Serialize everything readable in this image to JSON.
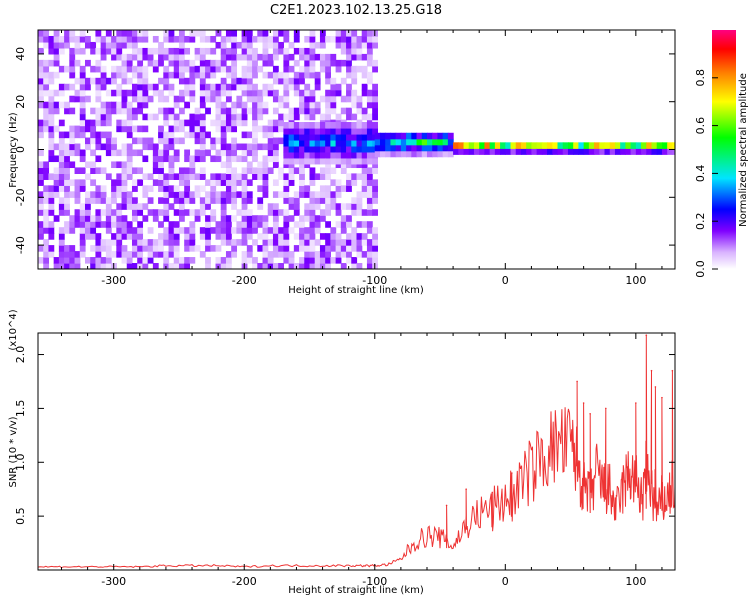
{
  "figure": {
    "title": "C2E1.2023.102.13.25.G18"
  },
  "chart_data": [
    {
      "type": "heatmap",
      "title": "C2E1.2023.102.13.25.G18",
      "xlabel": "Height of straight line (km)",
      "ylabel": "Frequency (Hz)",
      "xlim": [
        -358,
        130
      ],
      "ylim": [
        -50,
        50
      ],
      "x_ticks": [
        -300,
        -200,
        -100,
        0,
        100
      ],
      "x_tick_labels": [
        "-300",
        "-200",
        "-100",
        "0",
        "100"
      ],
      "y_ticks": [
        -40,
        -20,
        0,
        20,
        40
      ],
      "y_tick_labels": [
        "-40",
        "-20",
        "0",
        "20",
        "40"
      ],
      "colorbar": {
        "label": "Normalized spectral amplitude",
        "range": [
          0.0,
          1.0
        ],
        "ticks": [
          0.0,
          0.2,
          0.4,
          0.6,
          0.8
        ],
        "tick_labels": [
          "0.0",
          "0.2",
          "0.4",
          "0.6",
          "0.8"
        ],
        "colormap": [
          "#ffffff",
          "#d9b3ff",
          "#7f00ff",
          "#0000ff",
          "#00e5ff",
          "#00ff00",
          "#ffff00",
          "#ff8000",
          "#ff0000",
          "#ff0080"
        ]
      },
      "features": [
        {
          "description": "broadband noise",
          "x_range": [
            -358,
            -100
          ],
          "f_range": [
            -50,
            50
          ],
          "amplitude": 0.2
        },
        {
          "description": "signal band",
          "x_range": [
            -170,
            -100
          ],
          "f_center": 2,
          "f_halfwidth": 8,
          "amplitude": 0.45
        },
        {
          "description": "signal band",
          "x_range": [
            -100,
            -40
          ],
          "f_center": 2,
          "f_halfwidth": 5,
          "amplitude": 0.55
        },
        {
          "description": "signal band",
          "x_range": [
            -40,
            130
          ],
          "f_center": 0,
          "f_halfwidth": 2,
          "amplitude": 0.9
        }
      ],
      "grid": false
    },
    {
      "type": "line",
      "xlabel": "Height of straight line (km)",
      "ylabel": "SNR (10 * v/v)",
      "y_multiplier_label": "(x10^4)",
      "xlim": [
        -358,
        130
      ],
      "ylim": [
        0,
        2.2
      ],
      "x_ticks": [
        -300,
        -200,
        -100,
        0,
        100
      ],
      "x_tick_labels": [
        "-300",
        "-200",
        "-100",
        "0",
        "100"
      ],
      "y_ticks": [
        0.5,
        1.0,
        1.5,
        2.0
      ],
      "y_tick_labels": [
        "0.5",
        "1.0",
        "1.5",
        "2.0"
      ],
      "color": "#ee3333",
      "series": [
        {
          "x": [
            -358,
            -340,
            -320,
            -300,
            -280,
            -260,
            -240,
            -220,
            -200,
            -180,
            -160,
            -140,
            -120,
            -110,
            -100,
            -90,
            -80,
            -70,
            -60,
            -50,
            -40,
            -30,
            -20,
            -10,
            0,
            10,
            20,
            30,
            40,
            50,
            55,
            60,
            65,
            70,
            75,
            80,
            85,
            90,
            95,
            100,
            105,
            110,
            115,
            120,
            125,
            130
          ],
          "y": [
            0.03,
            0.03,
            0.03,
            0.03,
            0.03,
            0.04,
            0.04,
            0.04,
            0.03,
            0.04,
            0.04,
            0.04,
            0.04,
            0.04,
            0.04,
            0.05,
            0.1,
            0.25,
            0.32,
            0.3,
            0.22,
            0.42,
            0.52,
            0.58,
            0.65,
            0.78,
            0.92,
            1.08,
            1.16,
            1.15,
            1.0,
            0.75,
            0.68,
            0.9,
            0.76,
            0.74,
            0.55,
            0.75,
            0.9,
            0.82,
            0.65,
            0.85,
            0.55,
            0.6,
            0.7,
            0.78
          ]
        }
      ],
      "spikes": [
        {
          "x": -45,
          "y": 0.6
        },
        {
          "x": -30,
          "y": 0.75
        },
        {
          "x": -10,
          "y": 0.72
        },
        {
          "x": 5,
          "y": 0.9
        },
        {
          "x": 55,
          "y": 1.75
        },
        {
          "x": 60,
          "y": 1.55
        },
        {
          "x": 65,
          "y": 1.45
        },
        {
          "x": 77,
          "y": 1.5
        },
        {
          "x": 100,
          "y": 1.55
        },
        {
          "x": 108,
          "y": 2.18
        },
        {
          "x": 112,
          "y": 1.85
        },
        {
          "x": 115,
          "y": 1.7
        },
        {
          "x": 120,
          "y": 1.6
        },
        {
          "x": 128,
          "y": 1.85
        }
      ],
      "grid": false
    }
  ]
}
